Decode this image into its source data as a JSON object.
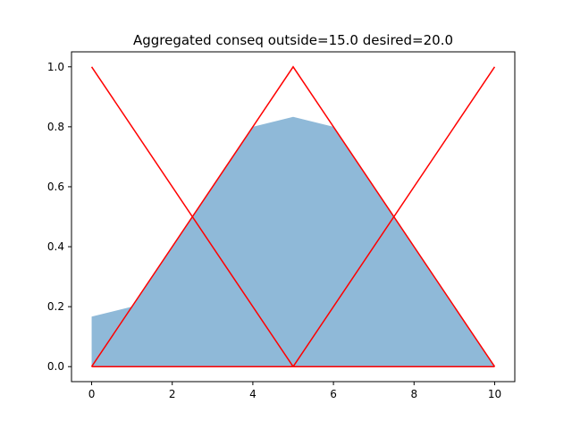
{
  "chart_data": {
    "type": "area",
    "title": "Aggregated conseq outside=15.0 desired=20.0",
    "xlabel": "",
    "ylabel": "",
    "xlim": [
      -0.5,
      10.5
    ],
    "ylim": [
      -0.05,
      1.05
    ],
    "xticks": [
      0,
      2,
      4,
      6,
      8,
      10
    ],
    "yticks": [
      0.0,
      0.2,
      0.4,
      0.6,
      0.8,
      1.0
    ],
    "xtick_labels": [
      "0",
      "2",
      "4",
      "6",
      "8",
      "10"
    ],
    "ytick_labels": [
      "0.0",
      "0.2",
      "0.4",
      "0.6",
      "0.8",
      "1.0"
    ],
    "grid": false,
    "fill": {
      "color": "#8fb9d8",
      "x": [
        0,
        1,
        2,
        3,
        4,
        5,
        6,
        7,
        8,
        9,
        10
      ],
      "y": [
        0.1667,
        0.2,
        0.4,
        0.6,
        0.8,
        0.8333,
        0.8,
        0.6,
        0.4,
        0.2,
        0.0
      ]
    },
    "series": [
      {
        "color": "#ff0000",
        "x": [
          0,
          5,
          10
        ],
        "y": [
          1.0,
          0.0,
          0.0
        ]
      },
      {
        "color": "#ff0000",
        "x": [
          0,
          5,
          10
        ],
        "y": [
          0.0,
          1.0,
          0.0
        ]
      },
      {
        "color": "#ff0000",
        "x": [
          0,
          5,
          10
        ],
        "y": [
          0.0,
          0.0,
          1.0
        ]
      }
    ]
  }
}
